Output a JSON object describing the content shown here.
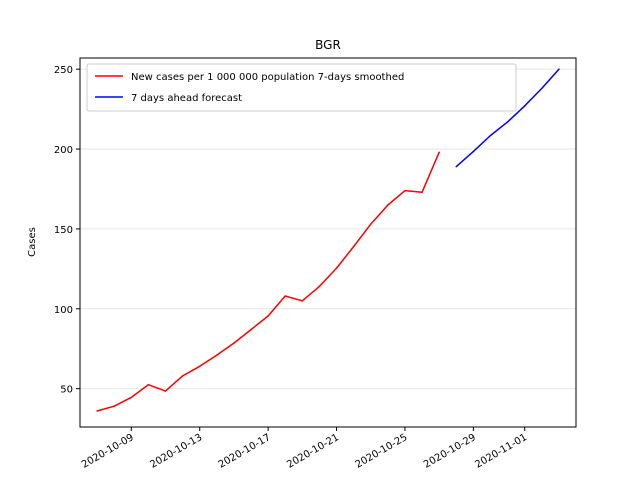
{
  "chart_data": {
    "type": "line",
    "title": "BGR",
    "xlabel": "",
    "ylabel": "Cases",
    "x_type": "date",
    "xlim": [
      "2020-10-06",
      "2020-11-04"
    ],
    "ylim": [
      26,
      257
    ],
    "x_ticks": [
      "2020-10-09",
      "2020-10-13",
      "2020-10-17",
      "2020-10-21",
      "2020-10-25",
      "2020-10-29",
      "2020-11-01"
    ],
    "y_ticks": [
      50,
      100,
      150,
      200,
      250
    ],
    "grid": "horizontal",
    "legend_position": "top-left",
    "series": [
      {
        "name": "New cases per 1 000 000 population 7-days smoothed",
        "color": "#ff0000",
        "points": [
          {
            "x": "2020-10-07",
            "y": 36
          },
          {
            "x": "2020-10-08",
            "y": 39
          },
          {
            "x": "2020-10-09",
            "y": 44.5
          },
          {
            "x": "2020-10-10",
            "y": 52.5
          },
          {
            "x": "2020-10-11",
            "y": 48.5
          },
          {
            "x": "2020-10-12",
            "y": 58
          },
          {
            "x": "2020-10-13",
            "y": 64
          },
          {
            "x": "2020-10-14",
            "y": 71
          },
          {
            "x": "2020-10-15",
            "y": 78.5
          },
          {
            "x": "2020-10-16",
            "y": 87
          },
          {
            "x": "2020-10-17",
            "y": 95.5
          },
          {
            "x": "2020-10-18",
            "y": 108
          },
          {
            "x": "2020-10-19",
            "y": 105
          },
          {
            "x": "2020-10-20",
            "y": 114
          },
          {
            "x": "2020-10-21",
            "y": 125.5
          },
          {
            "x": "2020-10-22",
            "y": 139
          },
          {
            "x": "2020-10-23",
            "y": 153
          },
          {
            "x": "2020-10-24",
            "y": 165
          },
          {
            "x": "2020-10-25",
            "y": 174
          },
          {
            "x": "2020-10-26",
            "y": 173
          },
          {
            "x": "2020-10-27",
            "y": 198
          }
        ]
      },
      {
        "name": "7 days ahead forecast",
        "color": "#0000ff",
        "points": [
          {
            "x": "2020-10-28",
            "y": 189
          },
          {
            "x": "2020-10-29",
            "y": 198.5
          },
          {
            "x": "2020-10-30",
            "y": 208.5
          },
          {
            "x": "2020-10-31",
            "y": 217
          },
          {
            "x": "2020-11-01",
            "y": 227
          },
          {
            "x": "2020-11-02",
            "y": 238
          },
          {
            "x": "2020-11-03",
            "y": 250
          }
        ]
      }
    ]
  }
}
